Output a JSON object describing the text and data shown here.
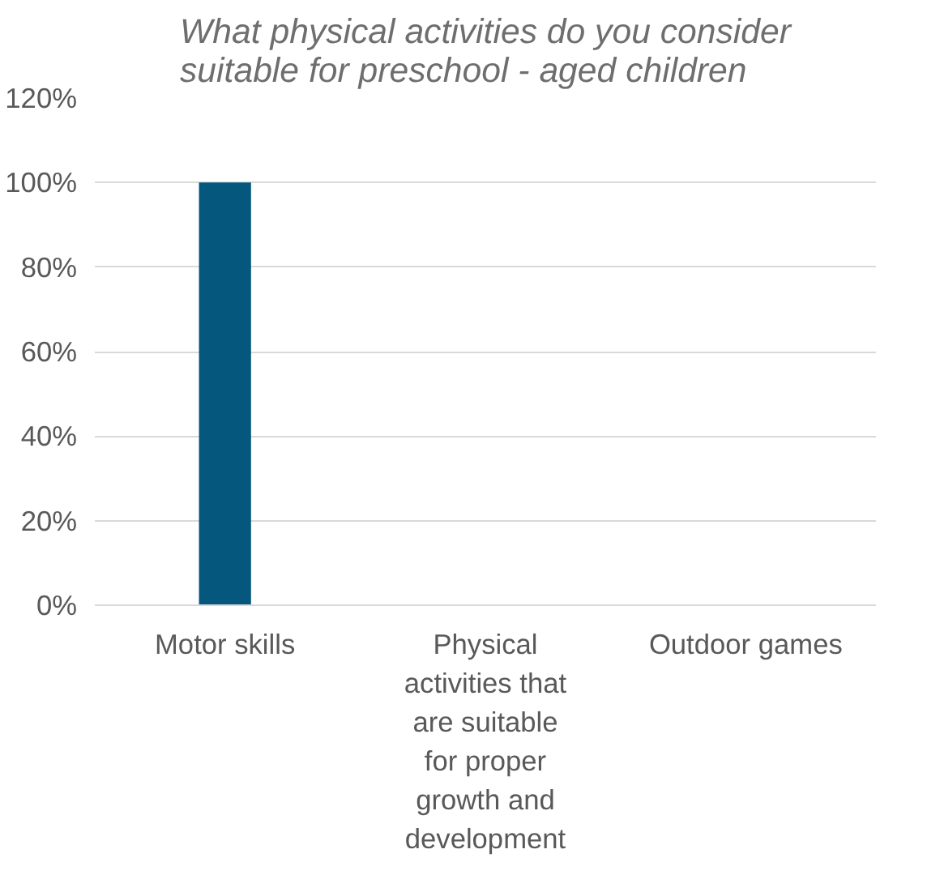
{
  "chart_data": {
    "type": "bar",
    "title": "What physical activities do you consider suitable for preschool - aged children",
    "categories": [
      "Motor skills",
      "Physical activities that are suitable for proper growth and development",
      "Outdoor games"
    ],
    "values": [
      100,
      0,
      0
    ],
    "color": "#05577e",
    "ylim": [
      0,
      120
    ],
    "yticks": [
      {
        "value": 0,
        "label": "0%"
      },
      {
        "value": 20,
        "label": "20%"
      },
      {
        "value": 40,
        "label": "40%"
      },
      {
        "value": 60,
        "label": "60%"
      },
      {
        "value": 80,
        "label": "80%"
      },
      {
        "value": 100,
        "label": "100%"
      },
      {
        "value": 120,
        "label": "120%"
      }
    ],
    "grid": "y"
  }
}
